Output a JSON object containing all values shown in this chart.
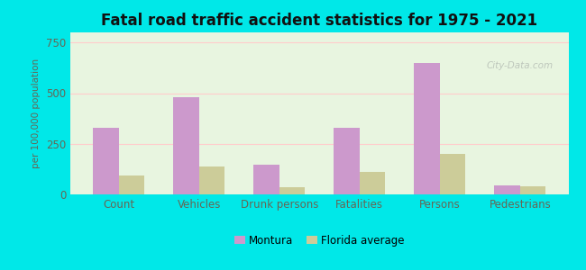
{
  "title": "Fatal road traffic accident statistics for 1975 - 2021",
  "ylabel": "per 100,000 population",
  "categories": [
    "Count",
    "Vehicles",
    "Drunk persons",
    "Fatalities",
    "Persons",
    "Pedestrians"
  ],
  "montura": [
    330,
    480,
    145,
    330,
    650,
    45
  ],
  "florida": [
    95,
    140,
    35,
    110,
    200,
    38
  ],
  "montura_color": "#cc99cc",
  "florida_color": "#cccc99",
  "bar_width": 0.32,
  "ylim": [
    0,
    800
  ],
  "yticks": [
    0,
    250,
    500,
    750
  ],
  "plot_bg_top": "#e8f5e8",
  "plot_bg_bottom": "#f0ffe8",
  "outer_background": "#00e8e8",
  "title_fontsize": 12,
  "label_fontsize": 8.5,
  "tick_color": "#666655",
  "legend_labels": [
    "Montura",
    "Florida average"
  ],
  "watermark": "City-Data.com"
}
